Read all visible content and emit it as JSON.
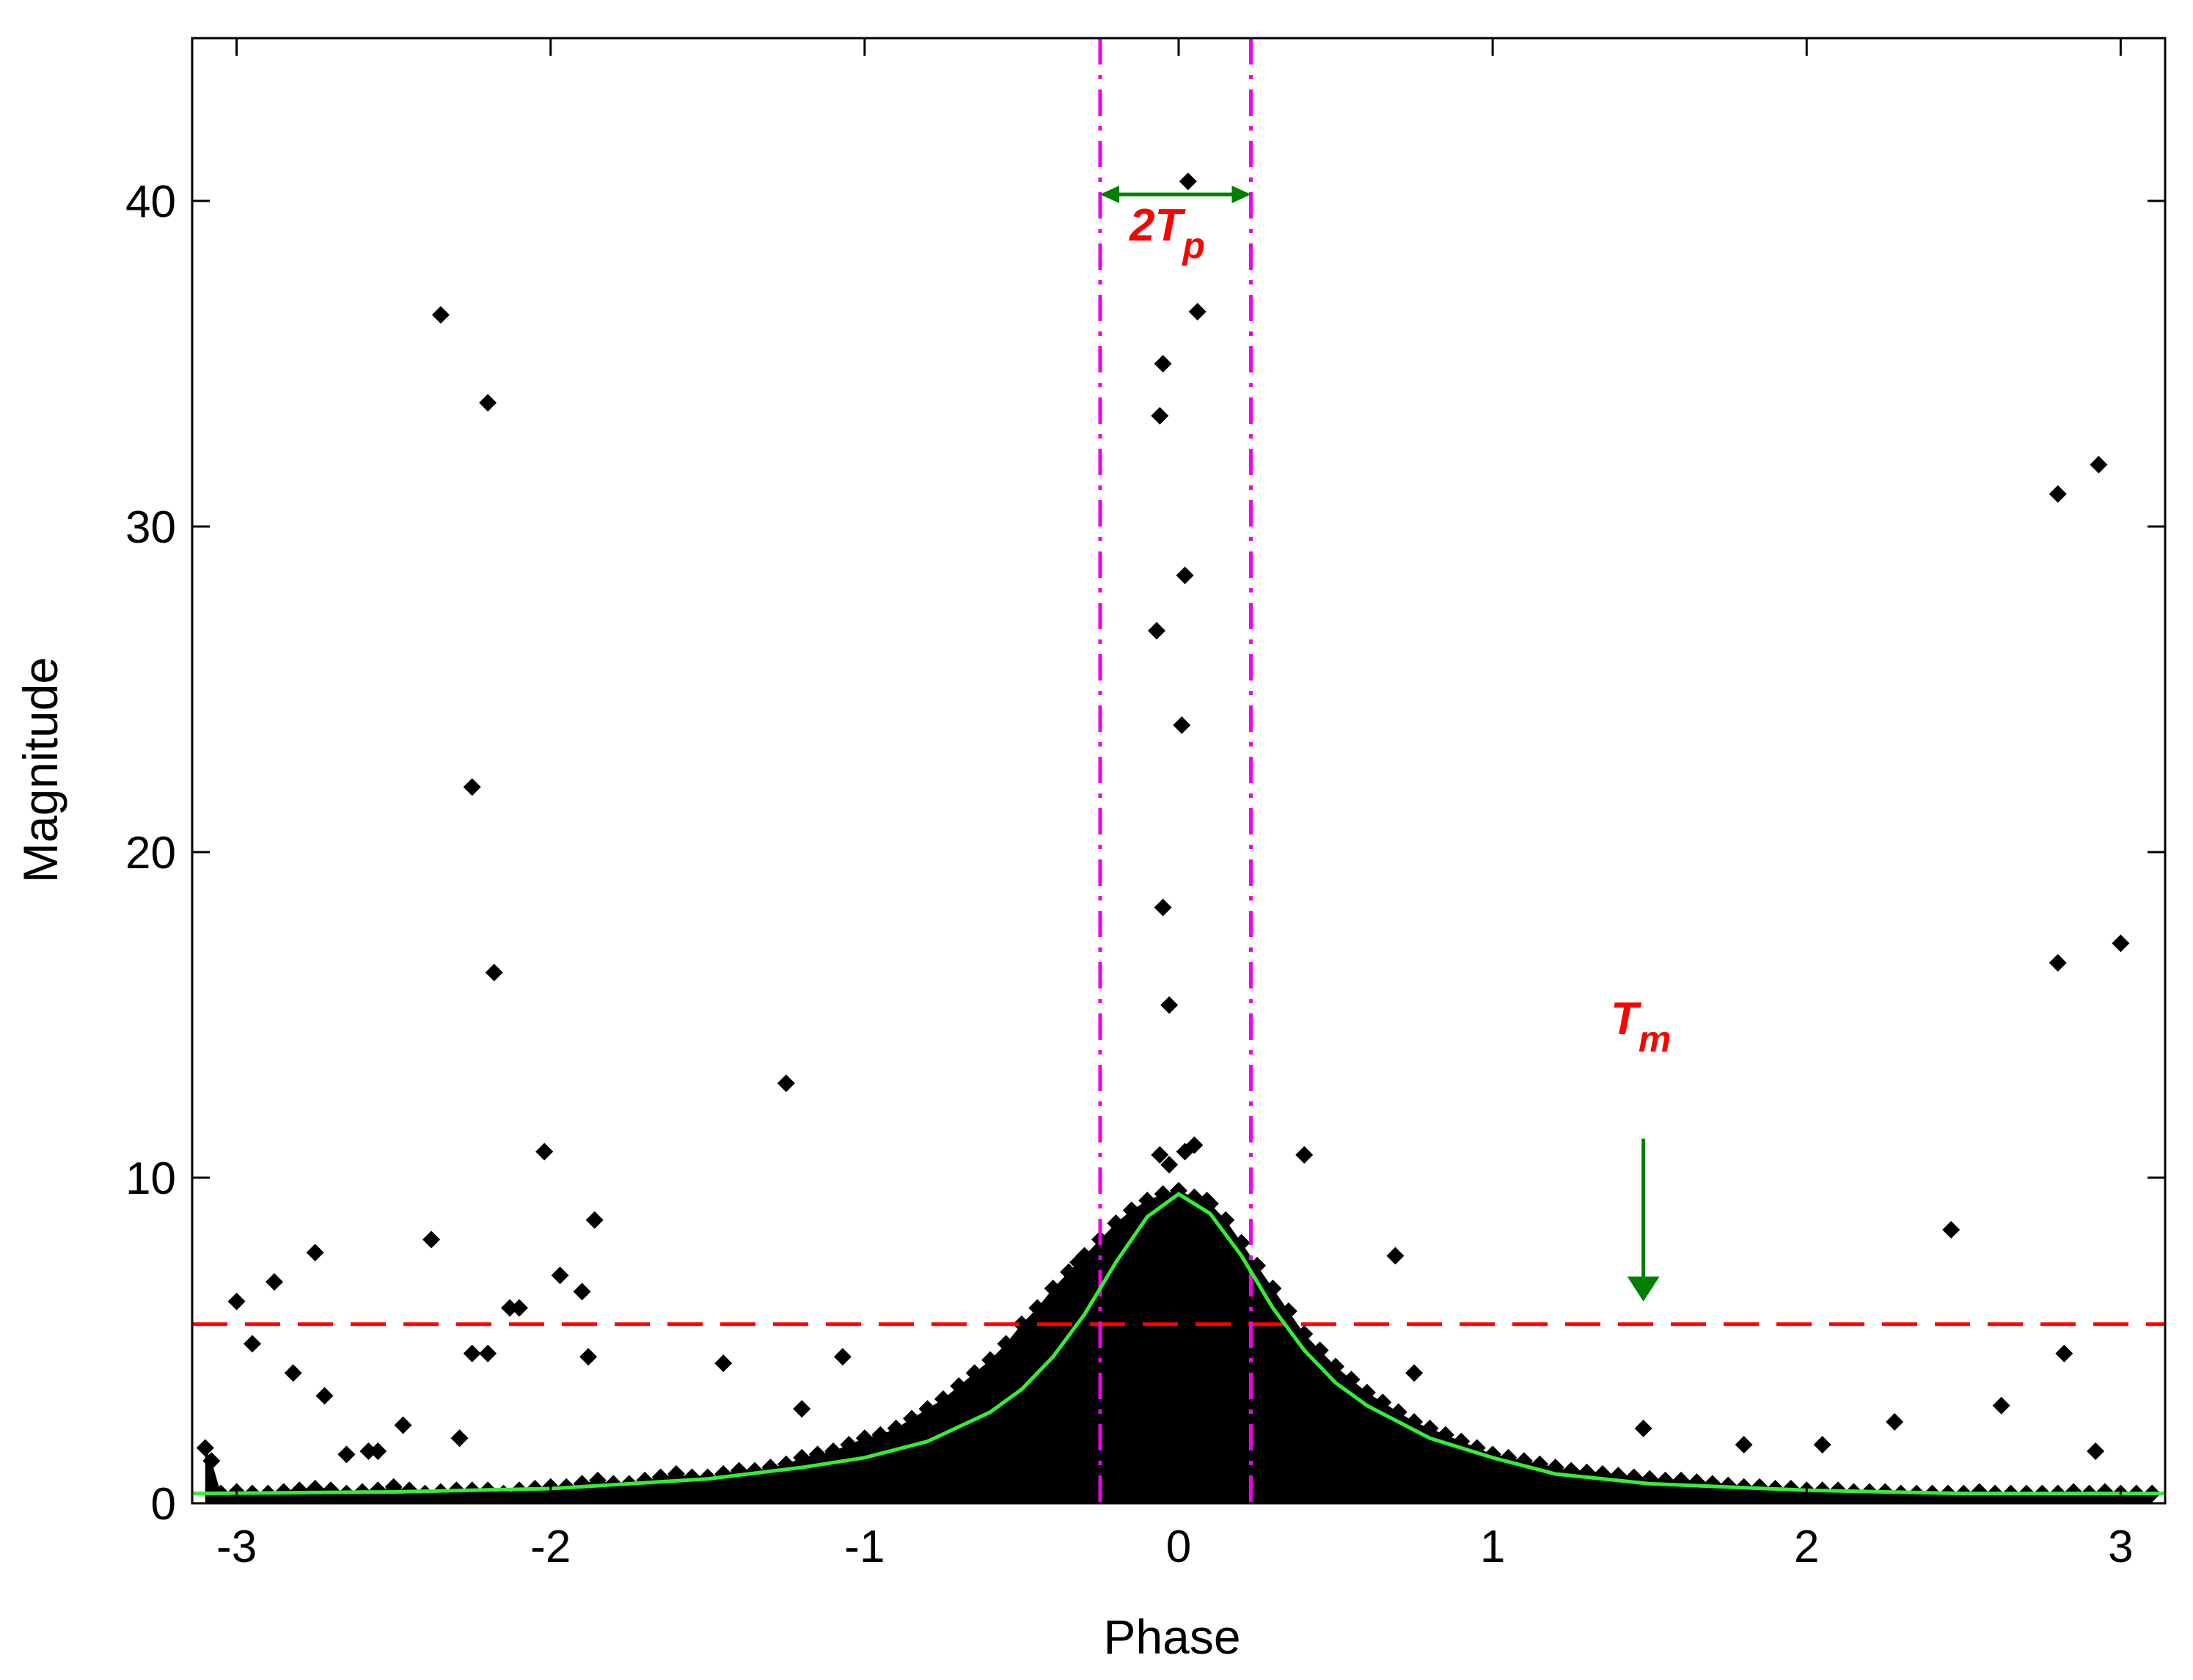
{
  "chart_data": {
    "type": "scatter",
    "xlabel": "Phase",
    "ylabel": "Magnitude",
    "xlim": [
      -3.1416,
      3.1416
    ],
    "ylim": [
      0,
      45
    ],
    "x_ticks": [
      -3,
      -2,
      -1,
      0,
      1,
      2,
      3
    ],
    "y_ticks": [
      0,
      10,
      20,
      30,
      40
    ],
    "x_tick_labels": [
      "-3",
      "-2",
      "-1",
      "0",
      "1",
      "2",
      "3"
    ],
    "y_tick_labels": [
      "0",
      "10",
      "20",
      "30",
      "40"
    ],
    "grid": false,
    "legend": "none",
    "annotations": {
      "tp_label": "2T",
      "tp_sub": "p",
      "tm_label": "T",
      "tm_sub": "m"
    },
    "colors": {
      "points": "#000000",
      "fit_curve": "#33ee33",
      "threshold_line": "#ff0000",
      "bounds_lines": "#ee00ee",
      "arrows": "#007f00",
      "annotation_text": "#ff0000"
    },
    "reference_lines": {
      "threshold_magnitude": 5.5,
      "phase_bounds": [
        -0.25,
        0.23
      ],
      "tm_arrow_phase": 1.48
    },
    "fit_curve": {
      "description": "Gaussian-like fit of magnitude vs phase",
      "peak_magnitude": 9.5,
      "baseline": 0.3,
      "x": [
        -3.14,
        -2.5,
        -2.0,
        -1.5,
        -1.2,
        -1.0,
        -0.8,
        -0.6,
        -0.5,
        -0.4,
        -0.3,
        -0.2,
        -0.1,
        0.0,
        0.1,
        0.2,
        0.3,
        0.4,
        0.5,
        0.6,
        0.8,
        1.0,
        1.2,
        1.5,
        2.0,
        2.5,
        3.14
      ],
      "y": [
        0.3,
        0.35,
        0.45,
        0.75,
        1.1,
        1.4,
        1.9,
        2.8,
        3.5,
        4.5,
        5.8,
        7.4,
        8.8,
        9.5,
        8.9,
        7.6,
        6.0,
        4.7,
        3.7,
        3.0,
        2.0,
        1.4,
        0.9,
        0.6,
        0.4,
        0.3,
        0.3
      ]
    },
    "series": [
      {
        "x": [
          -3.1,
          -3.08,
          -3.05,
          -3.0,
          -2.95,
          -2.9,
          -2.85,
          -2.8,
          -2.75,
          -2.7,
          -2.65,
          -2.6,
          -2.55,
          -2.5,
          -2.45,
          -2.4,
          -2.35,
          -2.3,
          -2.25,
          -2.2,
          -2.15,
          -2.1,
          -2.05,
          -2.0,
          -1.95,
          -1.9,
          -1.85,
          -1.8,
          -1.75,
          -1.7,
          -1.65,
          -1.6,
          -1.55,
          -1.5,
          -1.45,
          -1.4,
          -1.35,
          -1.3,
          -1.25,
          -1.2,
          -1.15,
          -1.1,
          -1.05,
          -1.0,
          -0.95,
          -0.9,
          -0.85,
          -0.8,
          -0.75,
          -0.7,
          -0.65,
          -0.6,
          -0.55,
          -0.5,
          -0.45,
          -0.4,
          -0.35,
          -0.3,
          -0.25,
          -0.2,
          -0.15,
          -0.1,
          -0.05,
          0.0,
          0.05,
          0.1,
          0.15,
          0.2,
          0.25,
          0.3,
          0.35,
          0.4,
          0.45,
          0.5,
          0.55,
          0.6,
          0.65,
          0.7,
          0.75,
          0.8,
          0.85,
          0.9,
          0.95,
          1.0,
          1.05,
          1.1,
          1.15,
          1.2,
          1.25,
          1.3,
          1.35,
          1.4,
          1.45,
          1.5,
          1.55,
          1.6,
          1.65,
          1.7,
          1.75,
          1.8,
          1.85,
          1.9,
          1.95,
          2.0,
          2.05,
          2.1,
          2.15,
          2.2,
          2.25,
          2.3,
          2.35,
          2.4,
          2.45,
          2.5,
          2.55,
          2.6,
          2.65,
          2.7,
          2.75,
          2.8,
          2.85,
          2.9,
          2.95,
          3.0,
          3.05,
          3.1
        ],
        "y": [
          1.7,
          1.3,
          0.3,
          0.35,
          0.3,
          0.3,
          0.35,
          0.4,
          0.45,
          0.4,
          0.3,
          0.35,
          0.4,
          0.5,
          0.4,
          0.3,
          0.35,
          0.4,
          0.4,
          0.4,
          0.3,
          0.4,
          0.45,
          0.5,
          0.5,
          0.6,
          0.7,
          0.6,
          0.6,
          0.7,
          0.8,
          0.9,
          0.8,
          0.8,
          0.9,
          1.0,
          1.0,
          1.1,
          1.2,
          1.4,
          1.5,
          1.6,
          1.8,
          2.0,
          2.1,
          2.3,
          2.6,
          2.9,
          3.2,
          3.6,
          4.0,
          4.4,
          4.9,
          5.5,
          6.0,
          6.6,
          7.1,
          7.6,
          8.1,
          8.6,
          9.0,
          9.3,
          9.5,
          9.6,
          9.4,
          9.2,
          8.7,
          8.0,
          7.3,
          6.6,
          5.9,
          5.2,
          4.7,
          4.2,
          3.8,
          3.4,
          3.1,
          2.8,
          2.5,
          2.3,
          2.1,
          1.9,
          1.7,
          1.5,
          1.4,
          1.3,
          1.2,
          1.1,
          1.0,
          0.95,
          0.9,
          0.85,
          0.8,
          0.75,
          0.7,
          0.7,
          0.65,
          0.6,
          0.55,
          0.5,
          0.5,
          0.45,
          0.45,
          0.4,
          0.4,
          0.4,
          0.35,
          0.35,
          0.35,
          0.3,
          0.3,
          0.3,
          0.3,
          0.3,
          0.35,
          0.3,
          0.3,
          0.3,
          0.3,
          0.3,
          0.35,
          0.3,
          0.35,
          0.3,
          0.3,
          0.3
        ]
      },
      {
        "x": [
          -2.35,
          -2.2,
          -2.25,
          -2.18,
          -2.02,
          -1.86,
          -2.38,
          -1.97,
          -1.9,
          -2.1,
          -2.13,
          -2.2,
          -2.25,
          -2.29,
          -1.88,
          -3.0,
          -2.95,
          -2.88,
          -2.82,
          -2.75,
          -2.72,
          -2.65,
          -2.58,
          -2.55,
          -2.47,
          -1.45,
          -1.25,
          -1.2,
          -1.07,
          -0.03,
          0.03,
          -0.05,
          0.06,
          -0.06,
          0.02,
          0.01,
          -0.07,
          -0.05,
          -0.06,
          0.02,
          0.05,
          -0.03,
          0.09,
          -0.32,
          0.4,
          0.69,
          0.75,
          1.48,
          2.46,
          2.8,
          2.93,
          2.8,
          3.0,
          2.82,
          2.62,
          2.28,
          2.05,
          1.8,
          2.92
        ],
        "y": [
          36.5,
          33.8,
          22.0,
          16.3,
          10.8,
          8.7,
          8.1,
          7.0,
          6.5,
          6.0,
          6.0,
          4.6,
          4.6,
          2.0,
          4.5,
          6.2,
          4.9,
          6.8,
          4.0,
          7.7,
          3.3,
          1.5,
          1.6,
          1.6,
          2.4,
          4.3,
          12.9,
          2.9,
          4.5,
          15.3,
          40.6,
          35.0,
          36.6,
          33.4,
          28.5,
          23.9,
          26.8,
          18.3,
          10.7,
          10.8,
          11.0,
          10.4,
          9.3,
          7.4,
          10.7,
          7.6,
          4.0,
          2.3,
          8.4,
          31.0,
          31.9,
          16.6,
          17.2,
          4.6,
          3.0,
          2.5,
          1.8,
          1.8,
          1.6
        ]
      }
    ]
  }
}
